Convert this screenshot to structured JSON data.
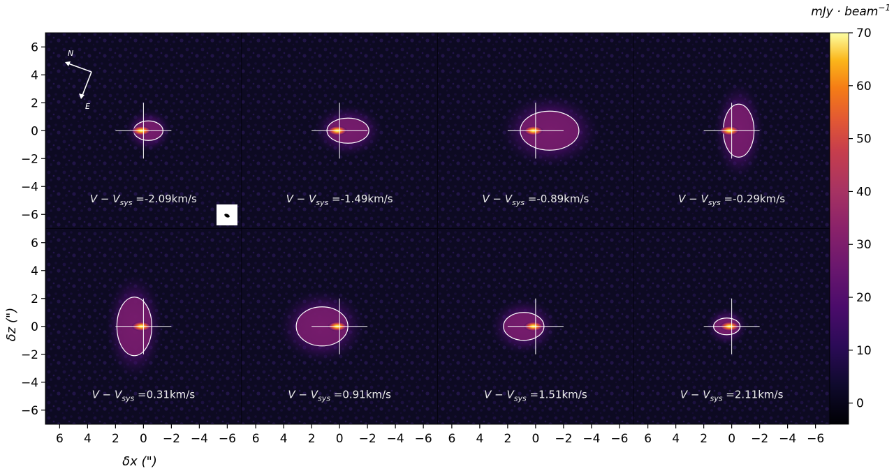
{
  "chart_data": {
    "type": "heatmap",
    "description_units": "arcsec",
    "colorbar": {
      "label": "mJy · beam",
      "label_exponent": "−1",
      "range": [
        -4,
        70
      ],
      "ticks": [
        "0",
        "10",
        "20",
        "30",
        "40",
        "50",
        "60",
        "70"
      ],
      "tick_values": [
        0,
        10,
        20,
        30,
        40,
        50,
        60,
        70
      ],
      "colormap": "inferno"
    },
    "xaxis": {
      "label": "δx (\")",
      "range": [
        7,
        -7
      ],
      "ticks": [
        "6",
        "4",
        "2",
        "0",
        "−2",
        "−4",
        "−6"
      ],
      "tick_values": [
        6,
        4,
        2,
        0,
        -2,
        -4,
        -6
      ]
    },
    "yaxis": {
      "label": "δz (\")",
      "range": [
        -7,
        7
      ],
      "ticks": [
        "6",
        "4",
        "2",
        "0",
        "−2",
        "−4",
        "−6"
      ],
      "tick_values": [
        6,
        4,
        2,
        0,
        -2,
        -4,
        -6
      ]
    },
    "compass": {
      "north": "N",
      "east": "E"
    },
    "panels": [
      {
        "label_prefix": "V − V",
        "label_sub": "sys",
        "label_value": " =-2.09km/s",
        "velocity": -2.09,
        "emission_extent": [
          -1.3,
          0.6,
          0.6
        ]
      },
      {
        "label_prefix": "V − V",
        "label_sub": "sys",
        "label_value": " =-1.49km/s",
        "velocity": -1.49,
        "emission_extent": [
          -2.0,
          0.8,
          0.8
        ]
      },
      {
        "label_prefix": "V − V",
        "label_sub": "sys",
        "label_value": " =-0.89km/s",
        "velocity": -0.89,
        "emission_extent": [
          -3.0,
          1.0,
          1.3
        ]
      },
      {
        "label_prefix": "V − V",
        "label_sub": "sys",
        "label_value": " =-0.29km/s",
        "velocity": -0.29,
        "emission_extent": [
          -1.5,
          0.5,
          1.8
        ]
      },
      {
        "label_prefix": "V − V",
        "label_sub": "sys",
        "label_value": " =0.31km/s",
        "velocity": 0.31,
        "emission_extent": [
          -0.5,
          1.8,
          2.0
        ]
      },
      {
        "label_prefix": "V − V",
        "label_sub": "sys",
        "label_value": " =0.91km/s",
        "velocity": 0.91,
        "emission_extent": [
          -0.5,
          3.0,
          1.3
        ]
      },
      {
        "label_prefix": "V − V",
        "label_sub": "sys",
        "label_value": " =1.51km/s",
        "velocity": 1.51,
        "emission_extent": [
          -0.5,
          2.2,
          0.9
        ]
      },
      {
        "label_prefix": "V − V",
        "label_sub": "sys",
        "label_value": " =2.11km/s",
        "velocity": 2.11,
        "emission_extent": [
          -0.5,
          1.2,
          0.5
        ]
      }
    ]
  }
}
